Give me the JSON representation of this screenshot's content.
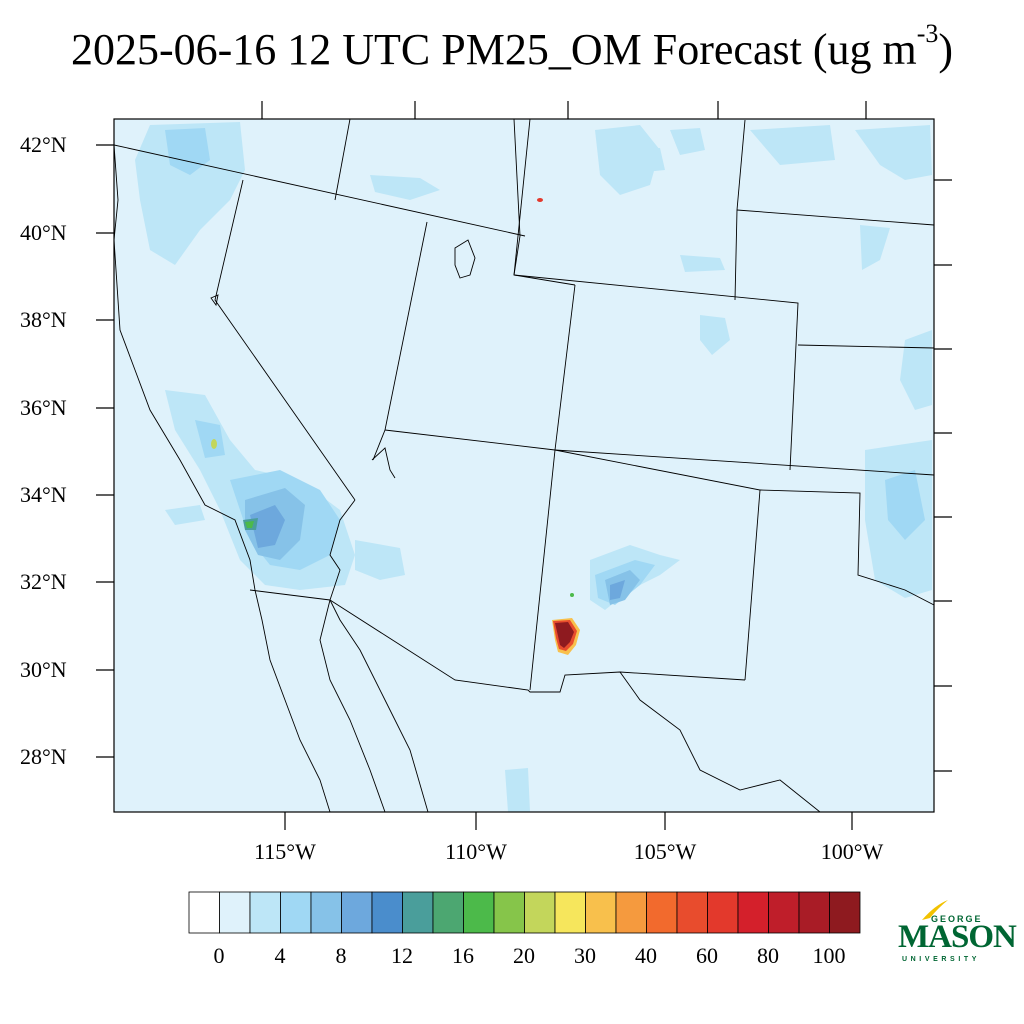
{
  "title": {
    "text": "2025-06-16 12 UTC PM25_OM Forecast (ug m",
    "superscript": "-3",
    "suffix": ")"
  },
  "map": {
    "background_color": "#dff2fb",
    "latitude_labels": [
      "42°N",
      "40°N",
      "38°N",
      "36°N",
      "34°N",
      "32°N",
      "30°N",
      "28°N"
    ],
    "longitude_labels": [
      "115°W",
      "110°W",
      "105°W",
      "100°W"
    ],
    "hotspots": [
      {
        "name": "southern-new-mexico-plume",
        "color": "#8b1a1a",
        "max_range": "100"
      },
      {
        "name": "southern-california-plume",
        "color": "#4a8dcc",
        "max_range": "12-16"
      }
    ]
  },
  "colorbar": {
    "colors": [
      "#ffffff",
      "#dff2fb",
      "#bde6f7",
      "#a0d8f4",
      "#86c2e8",
      "#6da8dd",
      "#4a8dcc",
      "#4a9e9b",
      "#4ca771",
      "#4cba4a",
      "#86c54a",
      "#c3d65b",
      "#f6e65c",
      "#f8c04c",
      "#f59a3e",
      "#f26a2d",
      "#e84c2d",
      "#e3392c",
      "#d4202b",
      "#bf1e2a",
      "#a91c26",
      "#8e1a1f"
    ],
    "labels": [
      "0",
      "4",
      "8",
      "12",
      "16",
      "20",
      "30",
      "40",
      "60",
      "80",
      "100"
    ]
  },
  "logo": {
    "line1": "GEORGE",
    "line2": "MASON",
    "line3": "UNIVERSITY",
    "color": "#006633",
    "accent_color": "#f2c200"
  }
}
